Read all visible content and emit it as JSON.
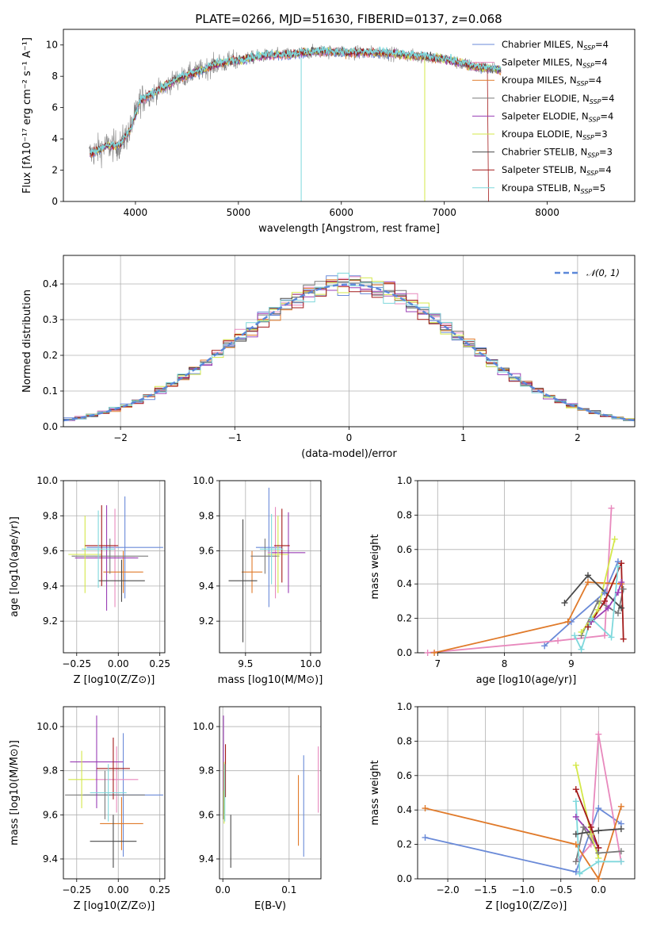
{
  "figure_title": "PLATE=0266, MJD=51630, FIBERID=0137, z=0.068",
  "colors": {
    "series": [
      "#6a8ad8",
      "#e889bd",
      "#e07a2a",
      "#7a7a7a",
      "#9a3fb5",
      "#d4e84a",
      "#4a4a4a",
      "#a31a1a",
      "#7ed8dc"
    ],
    "data": "#808080",
    "normal": "#5b87d9",
    "grid": "#b0b0b0"
  },
  "chart_data": [
    {
      "id": "spectrum",
      "type": "line",
      "title": "PLATE=0266, MJD=51630, FIBERID=0137, z=0.068",
      "xlabel": "wavelength [Angstrom, rest frame]",
      "ylabel": "Flux [fλ10⁻¹⁷ erg cm⁻² s⁻¹ A⁻¹]",
      "xlim": [
        3300,
        8850
      ],
      "ylim": [
        0,
        11
      ],
      "xticks": [
        4000,
        5000,
        6000,
        7000,
        8000
      ],
      "yticks": [
        0,
        2,
        4,
        6,
        8,
        10
      ],
      "grid": false,
      "legend_position": "right",
      "legend": [
        "Chabrier MILES, N_SSP=4",
        "Salpeter MILES, N_SSP=4",
        "Kroupa MILES, N_SSP=4",
        "Chabrier ELODIE, N_SSP=4",
        "Salpeter ELODIE, N_SSP=4",
        "Kroupa ELODIE, N_SSP=3",
        "Chabrier STELIB, N_SSP=3",
        "Salpeter STELIB, N_SSP=4",
        "Kroupa STELIB, N_SSP=5"
      ],
      "continuum": {
        "x": [
          3550,
          3700,
          3850,
          3950,
          4050,
          4200,
          4400,
          4600,
          4800,
          5000,
          5200,
          5500,
          5800,
          6100,
          6400,
          6700,
          7000,
          7300,
          7550
        ],
        "y": [
          3.0,
          3.5,
          3.6,
          4.6,
          6.5,
          7.0,
          7.8,
          8.3,
          8.8,
          9.0,
          9.3,
          9.4,
          9.6,
          9.5,
          9.5,
          9.3,
          9.1,
          8.6,
          8.4
        ]
      }
    },
    {
      "id": "residuals",
      "type": "histogram",
      "xlabel": "(data-model)/error",
      "ylabel": "Normed distribution",
      "xlim": [
        -2.5,
        2.5
      ],
      "ylim": [
        0,
        0.48
      ],
      "xticks": [
        -2,
        -1,
        0,
        1,
        2
      ],
      "yticks": [
        0.0,
        0.1,
        0.2,
        0.3,
        0.4
      ],
      "grid": true,
      "legend_position": "top-right",
      "legend": [
        "𝒩(0, 1)"
      ],
      "normal_curve": {
        "mean": 0,
        "sigma": 1
      },
      "bin_width": 0.1
    },
    {
      "id": "age_vs_Z",
      "type": "errorbar",
      "xlabel": "Z [log10(Z/Z⊙)]",
      "ylabel": "age  [log10(age/yr)]",
      "xlim": [
        -0.33,
        0.28
      ],
      "ylim": [
        9.02,
        10.0
      ],
      "xticks": [
        -0.25,
        0.0,
        0.25
      ],
      "yticks": [
        9.2,
        9.4,
        9.6,
        9.8,
        10.0
      ],
      "grid": true,
      "points": [
        {
          "x": 0.04,
          "y": 9.62,
          "xerr": 0.23,
          "yerr": 0.29
        },
        {
          "x": -0.02,
          "y": 9.56,
          "xerr": 0.12,
          "yerr": 0.28
        },
        {
          "x": 0.03,
          "y": 9.48,
          "xerr": 0.12,
          "yerr": 0.12
        },
        {
          "x": -0.05,
          "y": 9.57,
          "xerr": 0.23,
          "yerr": 0.1
        },
        {
          "x": -0.07,
          "y": 9.56,
          "xerr": 0.19,
          "yerr": 0.3
        },
        {
          "x": -0.2,
          "y": 9.58,
          "xerr": 0.1,
          "yerr": 0.22
        },
        {
          "x": 0.02,
          "y": 9.43,
          "xerr": 0.14,
          "yerr": 0.12
        },
        {
          "x": -0.1,
          "y": 9.63,
          "xerr": 0.1,
          "yerr": 0.23
        },
        {
          "x": -0.12,
          "y": 9.61,
          "xerr": 0.1,
          "yerr": 0.22
        }
      ],
      "point_order_note": ""
    },
    {
      "id": "age_vs_mass",
      "type": "errorbar",
      "xlabel": "mass [log10(M/M⊙)]",
      "ylabel": "",
      "xlim": [
        9.3,
        10.08
      ],
      "ylim": [
        9.02,
        10.0
      ],
      "xticks": [
        9.5,
        10.0
      ],
      "yticks": [
        9.2,
        9.4,
        9.6,
        9.8,
        10.0
      ],
      "grid": true,
      "points": [
        {
          "x": 9.68,
          "y": 9.62,
          "xerr": 0.1,
          "yerr": 0.34
        },
        {
          "x": 9.73,
          "y": 9.59,
          "xerr": 0.06,
          "yerr": 0.26
        },
        {
          "x": 9.55,
          "y": 9.48,
          "xerr": 0.08,
          "yerr": 0.12
        },
        {
          "x": 9.65,
          "y": 9.57,
          "xerr": 0.11,
          "yerr": 0.1
        },
        {
          "x": 9.83,
          "y": 9.59,
          "xerr": 0.13,
          "yerr": 0.23
        },
        {
          "x": 9.75,
          "y": 9.58,
          "xerr": 0.08,
          "yerr": 0.22
        },
        {
          "x": 9.48,
          "y": 9.43,
          "xerr": 0.11,
          "yerr": 0.35
        },
        {
          "x": 9.78,
          "y": 9.63,
          "xerr": 0.06,
          "yerr": 0.21
        },
        {
          "x": 9.7,
          "y": 9.61,
          "xerr": 0.09,
          "yerr": 0.2
        }
      ]
    },
    {
      "id": "weight_vs_age",
      "type": "line",
      "xlabel": "age  [log10(age/yr)]",
      "ylabel": "mass weight",
      "xlim": [
        6.7,
        9.95
      ],
      "ylim": [
        0,
        1.0
      ],
      "xticks": [
        7,
        8,
        9
      ],
      "yticks": [
        0.0,
        0.2,
        0.4,
        0.6,
        0.8,
        1.0
      ],
      "grid": true,
      "series": [
        {
          "x": [
            8.6,
            9.0,
            9.5,
            9.7
          ],
          "y": [
            0.04,
            0.18,
            0.35,
            0.53
          ]
        },
        {
          "x": [
            6.85,
            8.8,
            9.5,
            9.6
          ],
          "y": [
            0.0,
            0.07,
            0.1,
            0.84
          ]
        },
        {
          "x": [
            6.95,
            8.95,
            9.25,
            9.75
          ],
          "y": [
            0.0,
            0.18,
            0.41,
            0.4
          ]
        },
        {
          "x": [
            9.15,
            9.4,
            9.7,
            9.78
          ],
          "y": [
            0.1,
            0.3,
            0.23,
            0.37
          ]
        },
        {
          "x": [
            9.3,
            9.55,
            9.7,
            9.75
          ],
          "y": [
            0.18,
            0.26,
            0.35,
            0.41
          ]
        },
        {
          "x": [
            9.15,
            9.4,
            9.65
          ],
          "y": [
            0.12,
            0.25,
            0.66
          ]
        },
        {
          "x": [
            8.9,
            9.25,
            9.75
          ],
          "y": [
            0.29,
            0.45,
            0.26
          ]
        },
        {
          "x": [
            9.25,
            9.5,
            9.75,
            9.78
          ],
          "y": [
            0.15,
            0.3,
            0.52,
            0.08
          ]
        },
        {
          "x": [
            9.05,
            9.15,
            9.3,
            9.6,
            9.7
          ],
          "y": [
            0.1,
            0.02,
            0.2,
            0.09,
            0.5
          ]
        }
      ]
    },
    {
      "id": "mass_vs_Z",
      "type": "errorbar",
      "xlabel": "Z [log10(Z/Z⊙)]",
      "ylabel": "mass [log10(M/M⊙)]",
      "xlim": [
        -0.33,
        0.28
      ],
      "ylim": [
        9.31,
        10.09
      ],
      "xticks": [
        -0.25,
        0.0,
        0.25
      ],
      "yticks": [
        9.4,
        9.6,
        9.8,
        10.0
      ],
      "grid": true,
      "points": [
        {
          "x": 0.03,
          "y": 9.69,
          "xerr": 0.24,
          "yerr": 0.28
        },
        {
          "x": -0.01,
          "y": 9.76,
          "xerr": 0.13,
          "yerr": 0.15
        },
        {
          "x": 0.02,
          "y": 9.56,
          "xerr": 0.13,
          "yerr": 0.12
        },
        {
          "x": -0.08,
          "y": 9.69,
          "xerr": 0.24,
          "yerr": 0.11
        },
        {
          "x": -0.13,
          "y": 9.84,
          "xerr": 0.16,
          "yerr": 0.21
        },
        {
          "x": -0.22,
          "y": 9.76,
          "xerr": 0.08,
          "yerr": 0.13
        },
        {
          "x": -0.03,
          "y": 9.48,
          "xerr": 0.14,
          "yerr": 0.12
        },
        {
          "x": -0.03,
          "y": 9.81,
          "xerr": 0.1,
          "yerr": 0.14
        },
        {
          "x": -0.06,
          "y": 9.7,
          "xerr": 0.11,
          "yerr": 0.13
        }
      ]
    },
    {
      "id": "mass_vs_EBV",
      "type": "errorbar",
      "xlabel": "E(B-V)",
      "ylabel": "",
      "xlim": [
        -0.005,
        0.148
      ],
      "ylim": [
        9.31,
        10.09
      ],
      "xticks": [
        0.0,
        0.1
      ],
      "yticks": [
        9.4,
        9.6,
        9.8,
        10.0
      ],
      "grid": true,
      "points": [
        {
          "x": 0.122,
          "y": 9.64,
          "xerr": 0.0,
          "yerr": 0.23
        },
        {
          "x": 0.144,
          "y": 9.76,
          "xerr": 0.0,
          "yerr": 0.15
        },
        {
          "x": 0.114,
          "y": 9.62,
          "xerr": 0.0,
          "yerr": 0.16
        },
        {
          "x": 0.001,
          "y": 9.69,
          "xerr": 0.0,
          "yerr": 0.11
        },
        {
          "x": 0.001,
          "y": 9.88,
          "xerr": 0.0,
          "yerr": 0.17
        },
        {
          "x": 0.002,
          "y": 9.7,
          "xerr": 0.0,
          "yerr": 0.14
        },
        {
          "x": 0.012,
          "y": 9.48,
          "xerr": 0.0,
          "yerr": 0.12
        },
        {
          "x": 0.004,
          "y": 9.8,
          "xerr": 0.0,
          "yerr": 0.12
        },
        {
          "x": 0.003,
          "y": 9.7,
          "xerr": 0.0,
          "yerr": 0.13
        }
      ]
    },
    {
      "id": "weight_vs_Z",
      "type": "line",
      "xlabel": "Z [log10(Z/Z⊙)]",
      "ylabel": "mass weight",
      "xlim": [
        -2.4,
        0.48
      ],
      "ylim": [
        0,
        1.0
      ],
      "xticks": [
        -2.0,
        -1.5,
        -1.0,
        -0.5,
        0.0
      ],
      "yticks": [
        0.0,
        0.2,
        0.4,
        0.6,
        0.8,
        1.0
      ],
      "grid": true,
      "series": [
        {
          "x": [
            -2.3,
            -0.3,
            0.0,
            0.3
          ],
          "y": [
            0.24,
            0.04,
            0.41,
            0.32
          ]
        },
        {
          "x": [
            -0.3,
            -0.1,
            0.0,
            0.3
          ],
          "y": [
            0.1,
            0.2,
            0.84,
            0.1
          ]
        },
        {
          "x": [
            -2.3,
            -0.3,
            0.0,
            0.3
          ],
          "y": [
            0.41,
            0.2,
            0.0,
            0.42
          ]
        },
        {
          "x": [
            -0.3,
            -0.2,
            0.0,
            0.3
          ],
          "y": [
            0.1,
            0.3,
            0.15,
            0.16
          ]
        },
        {
          "x": [
            -0.3,
            -0.1,
            0.0
          ],
          "y": [
            0.36,
            0.26,
            0.18
          ]
        },
        {
          "x": [
            -0.3,
            -0.1,
            0.0
          ],
          "y": [
            0.66,
            0.26,
            0.12
          ]
        },
        {
          "x": [
            -0.3,
            0.0,
            0.3
          ],
          "y": [
            0.26,
            0.28,
            0.29
          ]
        },
        {
          "x": [
            -0.3,
            -0.1,
            0.0
          ],
          "y": [
            0.52,
            0.3,
            0.18
          ]
        },
        {
          "x": [
            -0.3,
            -0.25,
            0.0,
            0.3
          ],
          "y": [
            0.45,
            0.03,
            0.1,
            0.1
          ]
        }
      ]
    }
  ]
}
